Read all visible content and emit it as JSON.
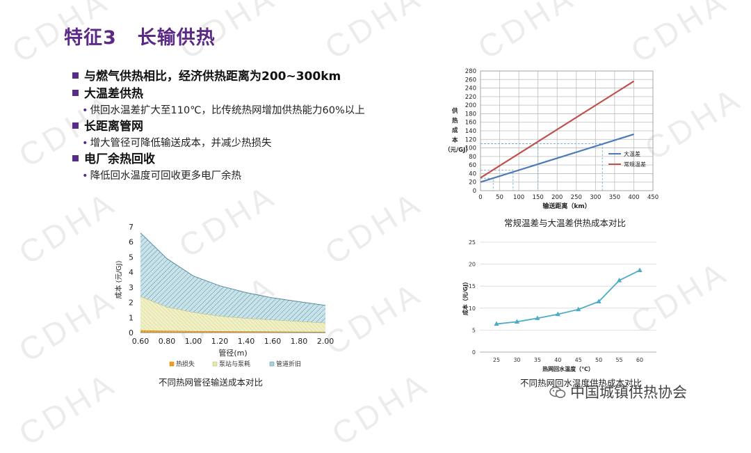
{
  "watermark": "CDHA",
  "title": {
    "num": "特征3",
    "main": "长输供热"
  },
  "bullets": [
    {
      "level": 1,
      "text": "与燃气供热相比，经济供热距离为200~300km"
    },
    {
      "level": 1,
      "text": "大温差供热"
    },
    {
      "level": 2,
      "text": "供回水温差扩大至110℃，比传统热网增加供热能力60%以上"
    },
    {
      "level": 1,
      "text": "长距离管网"
    },
    {
      "level": 2,
      "text": "增大管径可降低输送成本，并减少热损失"
    },
    {
      "level": 1,
      "text": "电厂余热回收"
    },
    {
      "level": 2,
      "text": "降低回水温度可回收更多电厂余热"
    }
  ],
  "colors": {
    "accent": "#5b2a86",
    "large_dt": "#4a7ab8",
    "normal_dt": "#c0504d",
    "loss": "#e8a020",
    "pump": "#e6e6a8",
    "pipe": "#a9d0dc",
    "curve": "#4bacc6"
  },
  "footer": {
    "icon": "wechat-icon",
    "text": "中国城镇供热协会"
  },
  "chart_data": [
    {
      "id": "chart-diameter",
      "type": "area",
      "stacked": true,
      "caption": "不同热网管径输送成本对比",
      "xlabel": "管径(m)",
      "ylabel": "成本 (元/GJ)",
      "x": [
        0.6,
        0.8,
        1.0,
        1.2,
        1.4,
        1.6,
        1.8,
        2.0
      ],
      "xticks": [
        "0.60",
        "0.80",
        "1.00",
        "1.20",
        "1.40",
        "1.60",
        "1.80",
        "2.00"
      ],
      "ylim": [
        0,
        7
      ],
      "yticks": [
        0,
        1,
        2,
        3,
        4,
        5,
        6,
        7
      ],
      "legend": "bottom",
      "series": [
        {
          "name": "热损失",
          "values": [
            0.15,
            0.12,
            0.1,
            0.09,
            0.08,
            0.07,
            0.06,
            0.05
          ]
        },
        {
          "name": "泵站与泵耗",
          "values": [
            2.25,
            1.58,
            1.25,
            1.01,
            0.87,
            0.78,
            0.69,
            0.6
          ]
        },
        {
          "name": "管道折旧",
          "values": [
            4.2,
            3.2,
            2.4,
            2.0,
            1.7,
            1.45,
            1.3,
            1.15
          ]
        }
      ]
    },
    {
      "id": "chart-distance",
      "type": "line",
      "caption": "常规温差与大温差供热成本对比",
      "xlabel": "输送距离（km）",
      "ylabel": [
        "供",
        "热",
        "成",
        "本",
        "（元/GJ）"
      ],
      "xlim": [
        0,
        450
      ],
      "xticks": [
        0,
        50,
        100,
        150,
        200,
        250,
        300,
        350,
        400,
        450
      ],
      "ylim": [
        0,
        280
      ],
      "yticks": [
        0,
        20,
        40,
        60,
        80,
        100,
        120,
        140,
        160,
        180,
        200,
        220,
        240,
        260,
        280
      ],
      "grid": true,
      "legend": "right",
      "series": [
        {
          "name": "大温差",
          "x": [
            0,
            400
          ],
          "y": [
            20,
            132
          ]
        },
        {
          "name": "常规温差",
          "x": [
            0,
            400
          ],
          "y": [
            30,
            256
          ]
        }
      ],
      "reference_lines": [
        {
          "x": 33,
          "y": 29
        },
        {
          "x": 85,
          "y": 48
        },
        {
          "x": 150,
          "y": 110
        },
        {
          "x": 318,
          "y": 110
        }
      ]
    },
    {
      "id": "chart-return-temp",
      "type": "line",
      "caption": "不同热网回水温度供热成本对比",
      "xlabel": "热网回水温度（℃）",
      "ylabel": "成本（元/GJ）",
      "categories": [
        "25",
        "30",
        "35",
        "40",
        "45",
        "50",
        "55",
        "60"
      ],
      "values": [
        6.4,
        6.9,
        7.7,
        8.6,
        9.7,
        11.5,
        16.3,
        18.6
      ],
      "ylim": [
        0,
        25
      ],
      "yticks": [
        0,
        5,
        10,
        15,
        20,
        25
      ],
      "grid": true
    }
  ]
}
